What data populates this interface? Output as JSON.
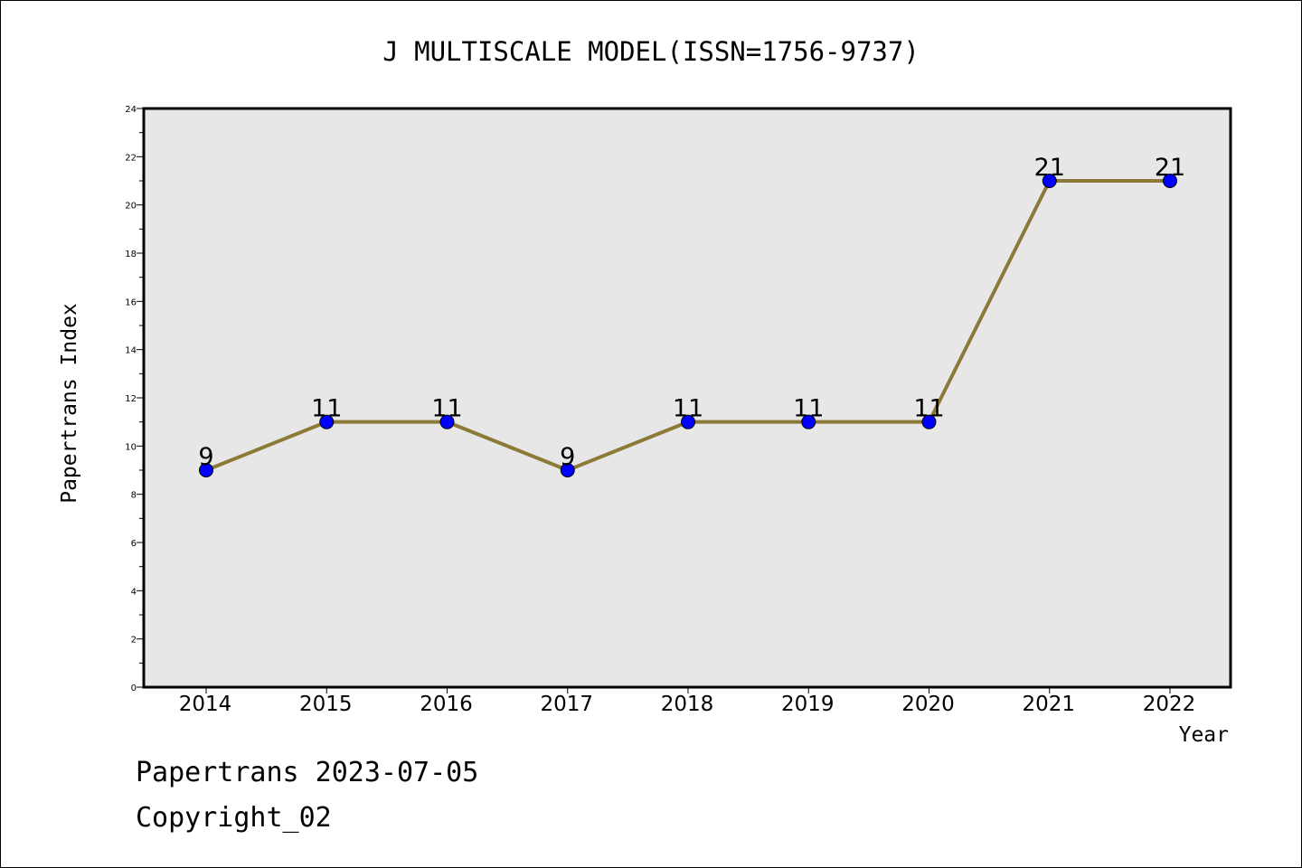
{
  "chart_data": {
    "type": "line",
    "title": "J MULTISCALE MODEL(ISSN=1756-9737)",
    "xlabel": "Year",
    "ylabel": "Papertrans Index",
    "categories": [
      "2014",
      "2015",
      "2016",
      "2017",
      "2018",
      "2019",
      "2020",
      "2021",
      "2022"
    ],
    "values": [
      9,
      11,
      11,
      9,
      11,
      11,
      11,
      21,
      21
    ],
    "data_labels": [
      "9",
      "11",
      "11",
      "9",
      "11",
      "11",
      "11",
      "21",
      "21"
    ],
    "ylim": [
      0,
      24
    ],
    "yticks": [
      "0",
      "2",
      "4",
      "6",
      "8",
      "10",
      "12",
      "14",
      "16",
      "18",
      "20",
      "22",
      "24"
    ],
    "grid": false,
    "colors": {
      "line": "#8c7a38",
      "marker": "#0000ff",
      "plot_background": "#e7e7e7"
    }
  },
  "footer": {
    "line1": "Papertrans 2023-07-05",
    "line2": "Copyright_02"
  }
}
